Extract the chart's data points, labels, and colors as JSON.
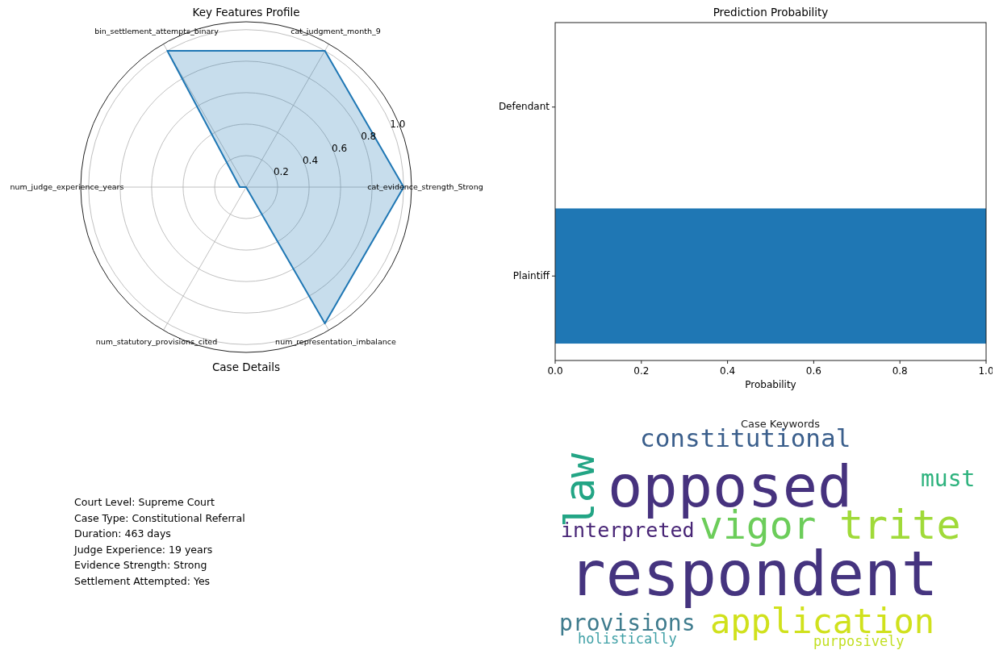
{
  "chart_data": [
    {
      "type": "radar",
      "title": "Key Features Profile",
      "categories": [
        "cat_judgment_month_9",
        "cat_evidence_strength_Strong",
        "num_representation_imbalance",
        "num_statutory_provisions_cited",
        "num_judge_experience_years",
        "bin_settlement_attempts_binary"
      ],
      "series": [
        {
          "color": "#1f77b4",
          "values": [
            1,
            1,
            1,
            0,
            0.04,
            1
          ]
        }
      ],
      "ylim": [
        0,
        1.05
      ],
      "yticks": [
        0.2,
        0.4,
        0.6,
        0.8,
        {
          "value": 1,
          "label": "1.0"
        }
      ],
      "grid": true
    },
    {
      "type": "bar",
      "orientation": "horizontal",
      "title": "Prediction Probability",
      "xlabel": "Probability",
      "categories": [
        "Defendant",
        "Plaintiff"
      ],
      "values": [
        0,
        1
      ],
      "color": "#1f77b4",
      "xlim": [
        0,
        1
      ],
      "xticks": [
        {
          "value": 0,
          "label": "0.0"
        },
        0.2,
        0.4,
        0.6,
        0.8,
        {
          "value": 1,
          "label": "1.0"
        }
      ]
    },
    {
      "type": "other",
      "title": "Case Details",
      "annotations": [
        "Court Level: Supreme Court",
        "Case Type: Constitutional Referral",
        "Duration: 463 days",
        "Judge Experience: 19 years",
        "Evidence Strength: Strong",
        "Settlement Attempted: Yes"
      ]
    },
    {
      "type": "other",
      "title": "Case Keywords",
      "categories": [
        "constitutional",
        "opposed",
        "law",
        "must",
        "vigor",
        "trite",
        "interpreted",
        "respondent",
        "application",
        "provisions",
        "holistically",
        "purposively"
      ],
      "colors": [
        "#3b5f8c",
        "#46327e",
        "#23a585",
        "#2db27d",
        "#6ccd5a",
        "#a0da39",
        "#482576",
        "#45347f",
        "#d0e11c",
        "#3e7b8d",
        "#3fa0a6",
        "#c2df23"
      ]
    }
  ]
}
